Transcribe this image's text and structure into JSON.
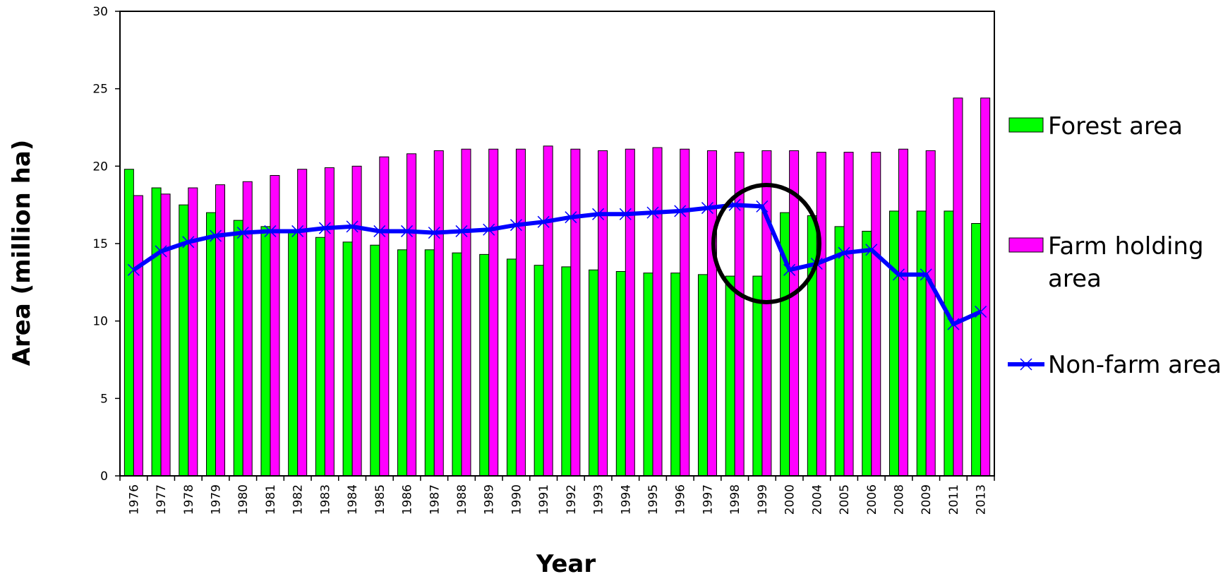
{
  "chart_data": {
    "type": "bar",
    "xlabel": "Year",
    "ylabel": "Area (million ha)",
    "ylim": [
      0,
      30
    ],
    "yticks": [
      "0",
      "5",
      "10",
      "15",
      "20",
      "25",
      "30"
    ],
    "categories": [
      "1976",
      "1977",
      "1978",
      "1979",
      "1980",
      "1981",
      "1982",
      "1983",
      "1984",
      "1985",
      "1986",
      "1987",
      "1988",
      "1989",
      "1990",
      "1991",
      "1992",
      "1993",
      "1994",
      "1995",
      "1996",
      "1997",
      "1998",
      "1999",
      "2000",
      "2004",
      "2005",
      "2006",
      "2008",
      "2009",
      "2011",
      "2013"
    ],
    "series": [
      {
        "name": "Forest area",
        "kind": "bar",
        "color": "#00ff00",
        "values": [
          19.8,
          18.6,
          17.5,
          17.0,
          16.5,
          16.1,
          15.7,
          15.4,
          15.1,
          14.9,
          14.6,
          14.6,
          14.4,
          14.3,
          14.0,
          13.6,
          13.5,
          13.3,
          13.2,
          13.1,
          13.1,
          13.0,
          12.9,
          12.9,
          17.0,
          16.8,
          16.1,
          15.8,
          17.1,
          17.1,
          17.1,
          16.3
        ]
      },
      {
        "name": "Farm holding area",
        "kind": "bar",
        "color": "#ff00ff",
        "values": [
          18.1,
          18.2,
          18.6,
          18.8,
          19.0,
          19.4,
          19.8,
          19.9,
          20.0,
          20.6,
          20.8,
          21.0,
          21.1,
          21.1,
          21.1,
          21.3,
          21.1,
          21.0,
          21.1,
          21.2,
          21.1,
          21.0,
          20.9,
          21.0,
          21.0,
          20.9,
          20.9,
          20.9,
          21.1,
          21.0,
          24.4,
          24.4
        ]
      },
      {
        "name": "Non-farm area",
        "kind": "line",
        "color": "#0000ff",
        "values": [
          13.3,
          14.5,
          15.1,
          15.5,
          15.7,
          15.8,
          15.8,
          16.0,
          16.1,
          15.8,
          15.8,
          15.7,
          15.8,
          15.9,
          16.2,
          16.4,
          16.7,
          16.9,
          16.9,
          17.0,
          17.1,
          17.3,
          17.5,
          17.4,
          13.3,
          13.7,
          14.4,
          14.6,
          13.0,
          13.0,
          9.8,
          10.6
        ]
      }
    ],
    "annotation": {
      "type": "circle",
      "around_categories": [
        "1998",
        "1999"
      ]
    },
    "legend_position": "right",
    "grid": false
  }
}
